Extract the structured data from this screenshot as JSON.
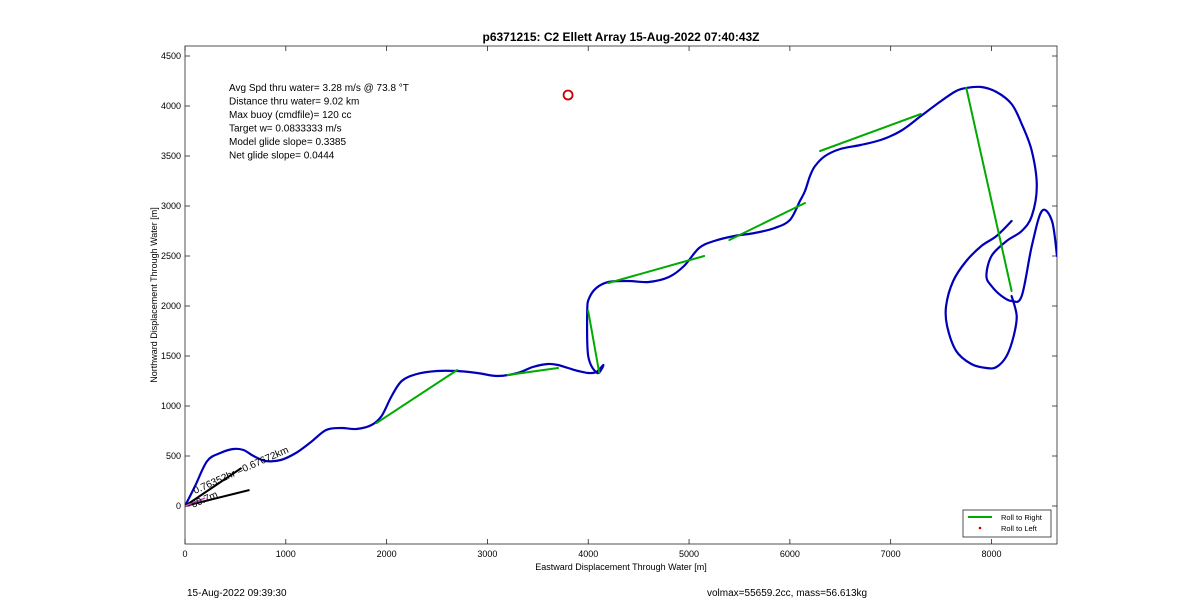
{
  "chart_data": {
    "type": "line",
    "title": "p6371215: C2 Ellett Array 15-Aug-2022 07:40:43Z",
    "xlabel": "Eastward Displacement Through Water [m]",
    "ylabel": "Northward Displacement Through Water [m]",
    "xlim": [
      0,
      8650
    ],
    "ylim": [
      -380,
      4600
    ],
    "xticks": [
      0,
      1000,
      2000,
      3000,
      4000,
      5000,
      6000,
      7000,
      8000
    ],
    "yticks": [
      0,
      500,
      1000,
      1500,
      2000,
      2500,
      3000,
      3500,
      4000,
      4500
    ],
    "grid": false,
    "legend": {
      "placement": "bottom-right",
      "entries": [
        {
          "name": "Roll to Right",
          "color": "#00aa00",
          "style": "line"
        },
        {
          "name": "Roll to Left",
          "color": "#cc0000",
          "style": "dot"
        }
      ]
    },
    "annotations": [
      "Avg Spd thru water=  3.28 m/s @  73.8 °T",
      "Distance thru water=  9.02 km",
      "Max buoy (cmdfile)= 120 cc",
      "Target w= 0.0833333 m/s",
      "Model glide slope= 0.3385",
      "Net glide slope= 0.0444"
    ],
    "vector_label": "0.76352hr =0.67672km",
    "vector_label_secondary": "60.7m",
    "marker": {
      "x": 3800,
      "y": 4110,
      "color": "#cc0000"
    },
    "series": [
      {
        "name": "track",
        "color": "#0000bb",
        "x": [
          0,
          100,
          220,
          350,
          480,
          580,
          680,
          800,
          950,
          1100,
          1250,
          1400,
          1550,
          1700,
          1850,
          1950,
          2050,
          2150,
          2300,
          2500,
          2700,
          2900,
          3100,
          3300,
          3450,
          3600,
          3700,
          3800,
          3900,
          4000,
          4080,
          4150,
          4090,
          4000,
          3990,
          4010,
          4080,
          4200,
          4400,
          4600,
          4800,
          4950,
          5100,
          5250,
          5450,
          5650,
          5850,
          6000,
          6100,
          6150,
          6200,
          6250,
          6350,
          6500,
          6700,
          6900,
          7100,
          7300,
          7500,
          7650,
          7750,
          7900,
          8050,
          8200,
          8300,
          8400,
          8450,
          8400,
          8300,
          8150,
          8000,
          7950,
          8000,
          8100,
          8200,
          8300,
          8400,
          8500,
          8600,
          8650
        ],
        "y": [
          0,
          200,
          450,
          530,
          570,
          560,
          500,
          450,
          460,
          530,
          640,
          760,
          780,
          770,
          810,
          900,
          1100,
          1250,
          1320,
          1350,
          1350,
          1330,
          1300,
          1330,
          1390,
          1420,
          1410,
          1380,
          1350,
          1330,
          1340,
          1410,
          1330,
          1500,
          1950,
          2080,
          2180,
          2240,
          2250,
          2240,
          2290,
          2400,
          2580,
          2650,
          2700,
          2730,
          2780,
          2860,
          3050,
          3150,
          3300,
          3400,
          3500,
          3570,
          3610,
          3660,
          3750,
          3900,
          4050,
          4150,
          4180,
          4190,
          4140,
          4020,
          3820,
          3550,
          3200,
          2900,
          2750,
          2650,
          2500,
          2300,
          2200,
          2100,
          2050,
          2100,
          2600,
          2950,
          2850,
          2500
        ]
      },
      {
        "name": "track-loop",
        "color": "#0000bb",
        "x": [
          8200,
          8050,
          7900,
          7750,
          7620,
          7550,
          7560,
          7650,
          7800,
          7950,
          8050,
          8150,
          8220,
          8250,
          8200
        ],
        "y": [
          2850,
          2700,
          2600,
          2450,
          2250,
          2000,
          1800,
          1550,
          1420,
          1380,
          1390,
          1500,
          1700,
          1900,
          2100
        ]
      },
      {
        "name": "Roll to Right",
        "color": "#00aa00",
        "x": [
          1900,
          2700,
          null,
          3200,
          3700,
          null,
          4000,
          4110,
          null,
          4200,
          5150,
          null,
          5400,
          6150,
          null,
          6300,
          7300,
          null,
          7750,
          8200
        ],
        "y": [
          830,
          1360,
          null,
          1310,
          1380,
          null,
          1950,
          1330,
          null,
          2230,
          2500,
          null,
          2660,
          3030,
          null,
          3550,
          3920,
          null,
          4180,
          2150
        ]
      }
    ]
  },
  "footer": {
    "left": "15-Aug-2022 09:39:30",
    "right": "volmax=55659.2cc, mass=56.613kg"
  }
}
